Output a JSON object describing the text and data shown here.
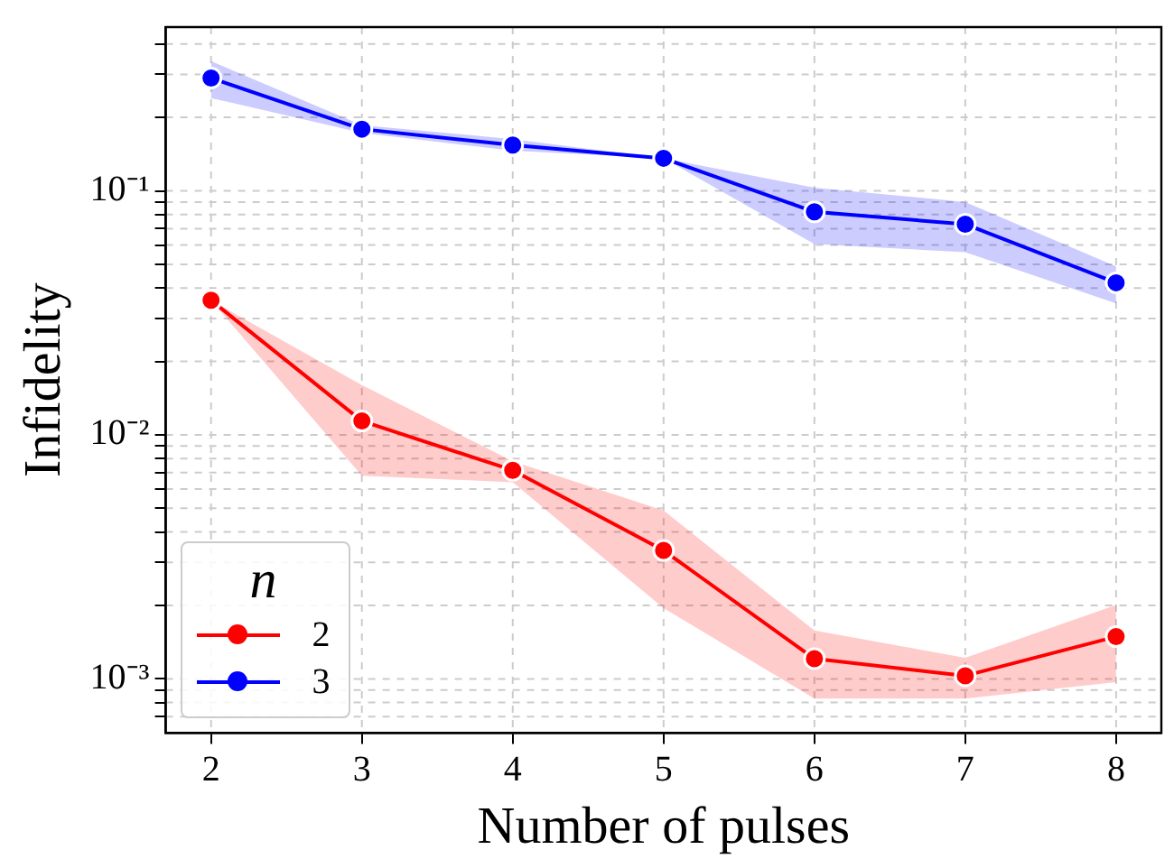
{
  "chart_data": {
    "type": "line",
    "xlabel": "Number of pulses",
    "ylabel": "Infidelity",
    "legend_title": "n",
    "legend": "bottom left",
    "log": "y",
    "grid": true,
    "marker": "circle",
    "x": [
      2,
      3,
      4,
      5,
      6,
      7,
      8
    ],
    "xlim": [
      1.7,
      8.3
    ],
    "xticks": [
      2,
      3,
      4,
      5,
      6,
      7,
      8
    ],
    "ylim": [
      0.00062,
      0.469
    ],
    "yticks": [
      {
        "value": 0.0007,
        "label": null
      },
      {
        "value": 0.0008,
        "label": null
      },
      {
        "value": 0.0009,
        "label": null
      },
      {
        "value": 0.001,
        "label": "10⁻³"
      },
      {
        "value": 0.002,
        "label": null
      },
      {
        "value": 0.003,
        "label": null
      },
      {
        "value": 0.004,
        "label": null
      },
      {
        "value": 0.005,
        "label": null
      },
      {
        "value": 0.006,
        "label": null
      },
      {
        "value": 0.007,
        "label": null
      },
      {
        "value": 0.008,
        "label": null
      },
      {
        "value": 0.009,
        "label": null
      },
      {
        "value": 0.01,
        "label": "10⁻²"
      },
      {
        "value": 0.02,
        "label": null
      },
      {
        "value": 0.03,
        "label": null
      },
      {
        "value": 0.04,
        "label": null
      },
      {
        "value": 0.05,
        "label": null
      },
      {
        "value": 0.06,
        "label": null
      },
      {
        "value": 0.07,
        "label": null
      },
      {
        "value": 0.08,
        "label": null
      },
      {
        "value": 0.09,
        "label": null
      },
      {
        "value": 0.1,
        "label": "10⁻¹"
      },
      {
        "value": 0.2,
        "label": null
      },
      {
        "value": 0.3,
        "label": null
      },
      {
        "value": 0.4,
        "label": null
      }
    ],
    "series": [
      {
        "name": "2",
        "color": "#ff0000",
        "values": [
          0.0356,
          0.0114,
          0.00716,
          0.00336,
          0.00121,
          0.00103,
          0.00149
        ],
        "lower": [
          0.0356,
          0.0068,
          0.0064,
          0.00195,
          0.00083,
          0.00083,
          0.00097
        ],
        "upper": [
          0.0356,
          0.016,
          0.0078,
          0.0049,
          0.00158,
          0.00122,
          0.00201
        ]
      },
      {
        "name": "3",
        "color": "#0000ff",
        "values": [
          0.29,
          0.179,
          0.154,
          0.136,
          0.082,
          0.073,
          0.042
        ],
        "lower": [
          0.24,
          0.173,
          0.146,
          0.136,
          0.0605,
          0.056,
          0.0346
        ],
        "upper": [
          0.34,
          0.186,
          0.163,
          0.136,
          0.103,
          0.09,
          0.049
        ]
      }
    ]
  }
}
